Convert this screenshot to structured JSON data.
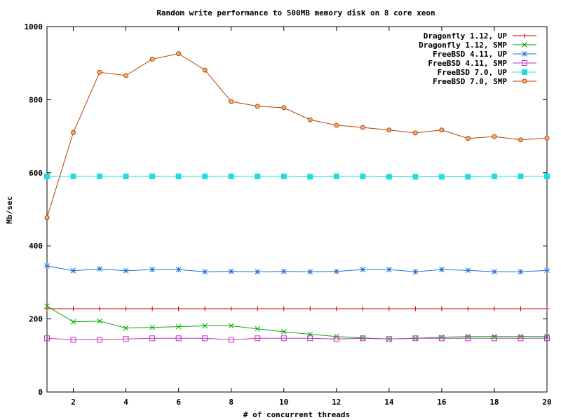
{
  "chart_data": {
    "type": "line",
    "title": "Random write performance to 500MB memory disk on 8 core xeon",
    "xlabel": "# of concurrent threads",
    "ylabel": "Mb/sec",
    "xlim": [
      1,
      20
    ],
    "ylim": [
      0,
      1000
    ],
    "xticks": [
      2,
      4,
      6,
      8,
      10,
      12,
      14,
      16,
      18,
      20
    ],
    "yticks": [
      0,
      200,
      400,
      600,
      800,
      1000
    ],
    "grid": false,
    "legend_position": "top-right",
    "x": [
      1,
      2,
      3,
      4,
      5,
      6,
      7,
      8,
      9,
      10,
      11,
      12,
      13,
      14,
      15,
      16,
      17,
      18,
      19,
      20
    ],
    "series": [
      {
        "name": "Dragonfly 1.12, UP",
        "color": "#cc0000",
        "marker": "plus",
        "values": [
          228,
          228,
          228,
          228,
          228,
          228,
          228,
          228,
          228,
          228,
          228,
          228,
          228,
          228,
          228,
          228,
          228,
          228,
          228,
          228
        ]
      },
      {
        "name": "Dragonfly 1.12, SMP",
        "color": "#00aa00",
        "marker": "cross",
        "values": [
          235,
          192,
          194,
          175,
          177,
          179,
          181,
          181,
          173,
          165,
          158,
          152,
          148,
          145,
          147,
          150,
          152,
          152,
          152,
          152
        ]
      },
      {
        "name": "FreeBSD 4.11, UP",
        "color": "#1e6fd8",
        "marker": "star",
        "values": [
          345,
          332,
          337,
          332,
          335,
          335,
          329,
          330,
          329,
          330,
          329,
          330,
          335,
          335,
          329,
          335,
          333,
          329,
          329,
          333
        ]
      },
      {
        "name": "FreeBSD 4.11, SMP",
        "color": "#bb33bb",
        "marker": "square",
        "values": [
          147,
          143,
          143,
          145,
          147,
          147,
          147,
          143,
          147,
          147,
          147,
          145,
          147,
          145,
          147,
          147,
          147,
          147,
          147,
          147
        ]
      },
      {
        "name": "FreeBSD 7.0, UP",
        "color": "#22dddd",
        "marker": "filled-square",
        "values": [
          590,
          590,
          590,
          590,
          590,
          590,
          590,
          590,
          590,
          590,
          589,
          590,
          590,
          589,
          589,
          589,
          589,
          590,
          590,
          590
        ]
      },
      {
        "name": "FreeBSD 7.0, SMP",
        "color": "#b84000",
        "marker": "circle",
        "values": [
          477,
          710,
          875,
          866,
          911,
          926,
          881,
          795,
          782,
          778,
          745,
          730,
          724,
          717,
          709,
          717,
          694,
          699,
          690,
          695
        ]
      }
    ]
  }
}
